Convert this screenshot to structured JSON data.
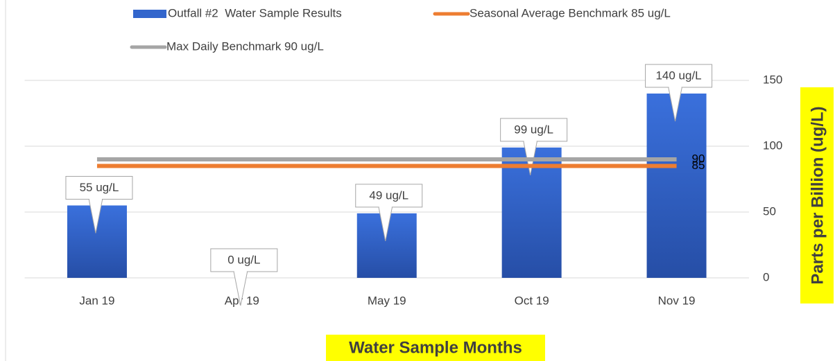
{
  "chart_data": {
    "type": "bar",
    "categories": [
      "Jan 19",
      "Apr 19",
      "May 19",
      "Oct 19",
      "Nov 19"
    ],
    "series": [
      {
        "name": "Outfall #2  Water Sample Results",
        "type": "bar",
        "color": "#3366cc",
        "values": [
          55,
          0,
          49,
          99,
          140
        ],
        "value_labels": [
          "55 ug/L",
          "0 ug/L",
          "49 ug/L",
          "99 ug/L",
          "140 ug/L"
        ]
      },
      {
        "name": "Max Daily Benchmark 90 ug/L",
        "type": "line",
        "color": "#a5a5a5",
        "values": [
          90,
          90,
          90,
          90,
          90
        ]
      },
      {
        "name": "Seasonal Average Benchmark 85 ug/L",
        "type": "line",
        "color": "#ed7d31",
        "values": [
          85,
          85,
          85,
          85,
          85
        ]
      }
    ],
    "ylim": [
      0,
      150
    ],
    "yticks": [
      0,
      50,
      100,
      150
    ],
    "grid": true,
    "y_axis_side": "right",
    "xlabel": "Water Sample Months",
    "ylabel": "Parts per Billion (ug/L)"
  }
}
